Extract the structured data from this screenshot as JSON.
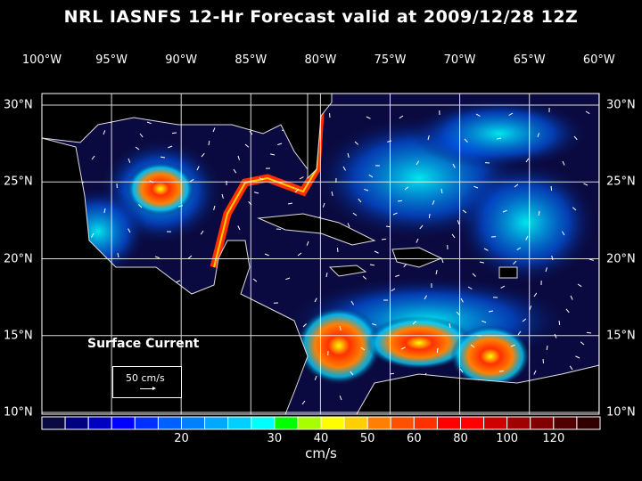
{
  "title": "NRL IASNFS  12-Hr Forecast valid at 2009/12/28 12Z",
  "lon_labels": [
    "100°W",
    "95°W",
    "90°W",
    "85°W",
    "80°W",
    "75°W",
    "70°W",
    "65°W",
    "60°W"
  ],
  "lat_labels": [
    "30°N",
    "25°N",
    "20°N",
    "15°N",
    "10°N"
  ],
  "annotation": "Surface Current",
  "reference_vector": "50 cm/s",
  "colorbar": {
    "unit": "cm/s",
    "labels": [
      "20",
      "30",
      "40",
      "50",
      "60",
      "80",
      "100",
      "120"
    ],
    "colors": [
      "#0a0a40",
      "#000080",
      "#0000c0",
      "#0000ff",
      "#0030ff",
      "#0060ff",
      "#0080ff",
      "#00a8ff",
      "#00d0ff",
      "#00ffff",
      "#00ff00",
      "#a8ff00",
      "#ffff00",
      "#ffd000",
      "#ff8000",
      "#ff5000",
      "#ff3000",
      "#ff0000",
      "#ff0000",
      "#d00000",
      "#a00000",
      "#800000",
      "#500000",
      "#300000"
    ]
  }
}
